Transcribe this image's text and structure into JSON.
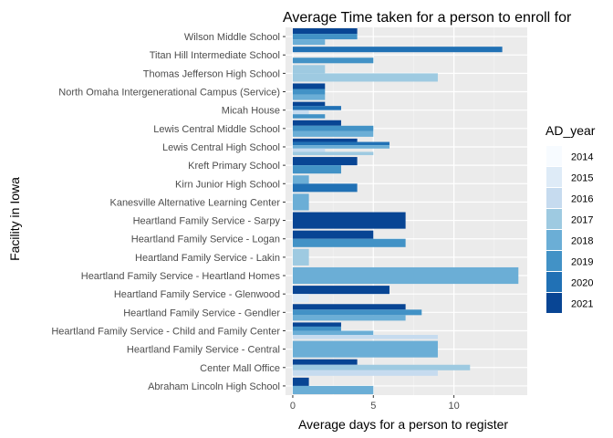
{
  "chart_data": {
    "type": "bar",
    "orientation": "horizontal",
    "title": "Average Time taken for a person to enroll for",
    "xlabel": "Average days for a person to register",
    "ylabel": "Facility in Iowa",
    "xlim": [
      0,
      14
    ],
    "x_ticks": [
      0,
      5,
      10
    ],
    "grid": true,
    "legend": {
      "title": "AD_year",
      "position": "right",
      "entries": [
        {
          "name": "2014",
          "color": "#F7FBFF"
        },
        {
          "name": "2015",
          "color": "#DEEBF7"
        },
        {
          "name": "2016",
          "color": "#C6DBEF"
        },
        {
          "name": "2017",
          "color": "#9ECAE1"
        },
        {
          "name": "2018",
          "color": "#6BAED6"
        },
        {
          "name": "2019",
          "color": "#4292C6"
        },
        {
          "name": "2020",
          "color": "#2171B5"
        },
        {
          "name": "2021",
          "color": "#084594"
        }
      ]
    },
    "categories": [
      {
        "label": "Wilson Middle School",
        "bars": [
          {
            "year": "2021",
            "value": 4
          },
          {
            "year": "2019",
            "value": 4
          },
          {
            "year": "2018",
            "value": 2
          }
        ]
      },
      {
        "label": "Titan Hill Intermediate School",
        "bars": [
          {
            "year": "2020",
            "value": 13
          },
          {
            "year": "2016",
            "value": 0
          },
          {
            "year": "2019",
            "value": 5
          }
        ]
      },
      {
        "label": "Thomas Jefferson High School",
        "bars": [
          {
            "year": "2017",
            "value": 2
          },
          {
            "year": "2017",
            "value": 9
          }
        ]
      },
      {
        "label": "North Omaha Intergenerational Campus (Service)",
        "bars": [
          {
            "year": "2021",
            "value": 2
          },
          {
            "year": "2019",
            "value": 2
          },
          {
            "year": "2018",
            "value": 2
          }
        ]
      },
      {
        "label": "Micah House",
        "bars": [
          {
            "year": "2021",
            "value": 2
          },
          {
            "year": "2020",
            "value": 3
          },
          {
            "year": "2016",
            "value": 1
          },
          {
            "year": "2019",
            "value": 2
          }
        ]
      },
      {
        "label": "Lewis Central Middle School",
        "bars": [
          {
            "year": "2021",
            "value": 3
          },
          {
            "year": "2019",
            "value": 5
          },
          {
            "year": "2018",
            "value": 5
          }
        ]
      },
      {
        "label": "Lewis Central High School",
        "bars": [
          {
            "year": "2021",
            "value": 4
          },
          {
            "year": "2020",
            "value": 6
          },
          {
            "year": "2018",
            "value": 6
          },
          {
            "year": "2016",
            "value": 2
          },
          {
            "year": "2017",
            "value": 5
          }
        ]
      },
      {
        "label": "Kreft Primary School",
        "bars": [
          {
            "year": "2021",
            "value": 4
          },
          {
            "year": "2019",
            "value": 3
          }
        ]
      },
      {
        "label": "Kirn Junior High  School",
        "bars": [
          {
            "year": "2018",
            "value": 1
          },
          {
            "year": "2020",
            "value": 4
          }
        ]
      },
      {
        "label": "Kanesville Alternative Learning Center",
        "bars": [
          {
            "year": "2018",
            "value": 1
          }
        ]
      },
      {
        "label": "Heartland Family Service - Sarpy",
        "bars": [
          {
            "year": "2021",
            "value": 7
          }
        ]
      },
      {
        "label": "Heartland Family Service - Logan",
        "bars": [
          {
            "year": "2021",
            "value": 5
          },
          {
            "year": "2019",
            "value": 7
          }
        ]
      },
      {
        "label": "Heartland Family Service - Lakin",
        "bars": [
          {
            "year": "2017",
            "value": 1
          }
        ]
      },
      {
        "label": "Heartland Family Service - Heartland Homes",
        "bars": [
          {
            "year": "2018",
            "value": 14
          }
        ]
      },
      {
        "label": "Heartland Family Service - Glenwood",
        "bars": [
          {
            "year": "2021",
            "value": 6
          },
          {
            "year": "2015",
            "value": 1
          }
        ]
      },
      {
        "label": "Heartland Family Service - Gendler",
        "bars": [
          {
            "year": "2021",
            "value": 7
          },
          {
            "year": "2019",
            "value": 8
          },
          {
            "year": "2018",
            "value": 7
          }
        ]
      },
      {
        "label": "Heartland Family Service - Child and Family Center",
        "bars": [
          {
            "year": "2021",
            "value": 3
          },
          {
            "year": "2019",
            "value": 3
          },
          {
            "year": "2018",
            "value": 5
          },
          {
            "year": "2016",
            "value": 9
          }
        ]
      },
      {
        "label": "Heartland Family Service - Central",
        "bars": [
          {
            "year": "2018",
            "value": 9
          }
        ]
      },
      {
        "label": "Center Mall Office",
        "bars": [
          {
            "year": "2021",
            "value": 4
          },
          {
            "year": "2017",
            "value": 11
          },
          {
            "year": "2016",
            "value": 9
          }
        ]
      },
      {
        "label": "Abraham Lincoln High School",
        "bars": [
          {
            "year": "2021",
            "value": 1
          },
          {
            "year": "2018",
            "value": 5
          }
        ]
      }
    ]
  }
}
